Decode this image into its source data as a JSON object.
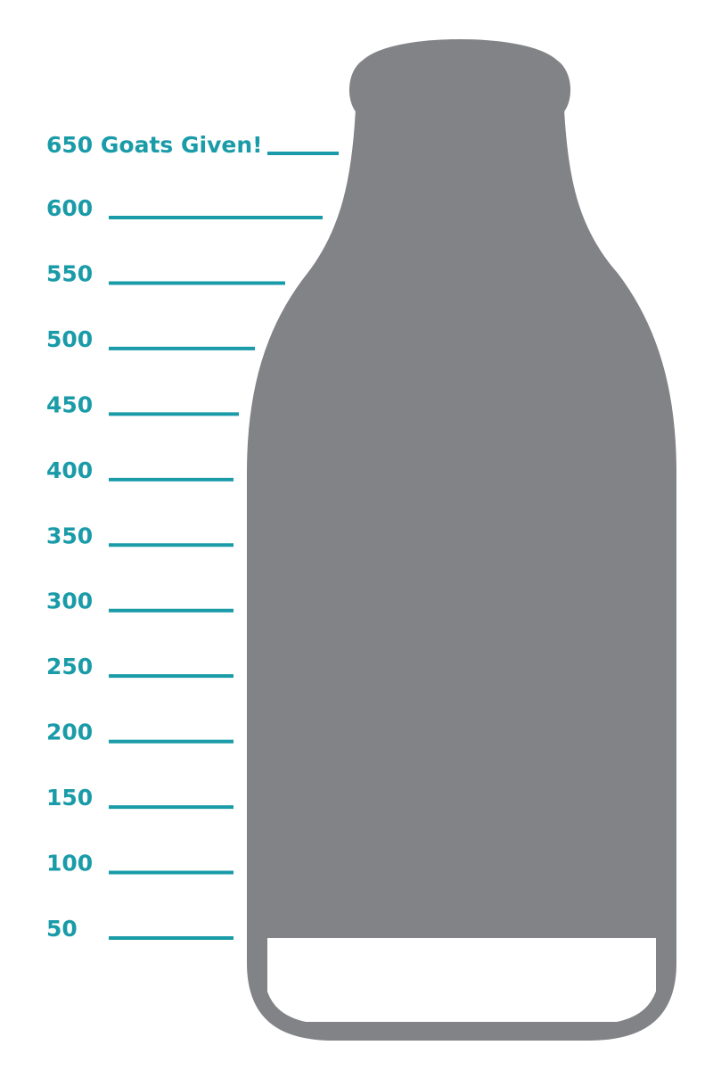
{
  "colors": {
    "accent": "#1a9ba8",
    "bottle": "#828386",
    "background": "#ffffff"
  },
  "goal": {
    "label": "650 Goats Given!",
    "value": 650
  },
  "progress": {
    "value": 50,
    "unit": "goats"
  },
  "marks": [
    {
      "value": 600,
      "label": "600"
    },
    {
      "value": 550,
      "label": "550"
    },
    {
      "value": 500,
      "label": "500"
    },
    {
      "value": 450,
      "label": "450"
    },
    {
      "value": 400,
      "label": "400"
    },
    {
      "value": 350,
      "label": "350"
    },
    {
      "value": 300,
      "label": "300"
    },
    {
      "value": 250,
      "label": "250"
    },
    {
      "value": 200,
      "label": "200"
    },
    {
      "value": 150,
      "label": "150"
    },
    {
      "value": 100,
      "label": "100"
    },
    {
      "value": 50,
      "label": "50"
    }
  ]
}
